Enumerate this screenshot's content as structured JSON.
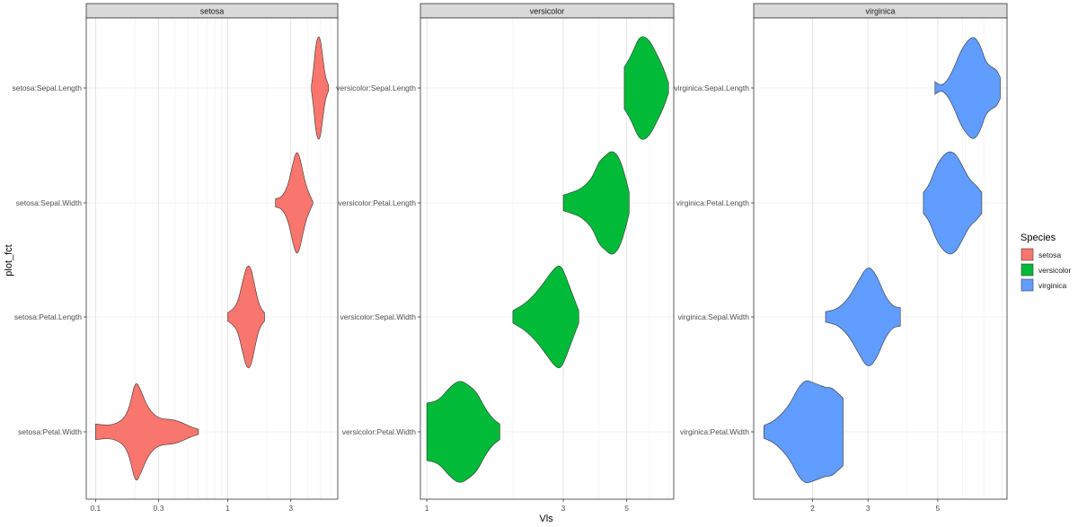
{
  "chart_data": {
    "type": "violin",
    "facet_by": "Species",
    "xlabel": "Vls",
    "ylabel": "plot_fct",
    "xscale": "log10",
    "grid": true,
    "legend": {
      "title": "Species",
      "position": "right",
      "entries": [
        {
          "name": "setosa",
          "color": "#F8766D"
        },
        {
          "name": "versicolor",
          "color": "#00BA38"
        },
        {
          "name": "virginica",
          "color": "#619CFF"
        }
      ]
    },
    "panels": [
      {
        "strip": "setosa",
        "color": "#F8766D",
        "xlim": [
          0.085,
          6.8
        ],
        "xticks": [
          {
            "value": 0.1,
            "label": "0.1"
          },
          {
            "value": 0.3,
            "label": "0.3"
          },
          {
            "value": 1,
            "label": "1"
          },
          {
            "value": 3,
            "label": "3"
          }
        ],
        "violins": [
          {
            "label": "setosa:Sepal.Length",
            "min": 4.3,
            "max": 5.8,
            "profile": [
              [
                4.3,
                0.05
              ],
              [
                4.45,
                0.35
              ],
              [
                4.6,
                0.75
              ],
              [
                4.75,
                0.95
              ],
              [
                4.9,
                1.0
              ],
              [
                5.05,
                0.9
              ],
              [
                5.2,
                0.65
              ],
              [
                5.35,
                0.4
              ],
              [
                5.5,
                0.22
              ],
              [
                5.65,
                0.12
              ],
              [
                5.8,
                0.05
              ]
            ]
          },
          {
            "label": "setosa:Sepal.Width",
            "min": 2.3,
            "max": 4.4,
            "profile": [
              [
                2.3,
                0.08
              ],
              [
                2.5,
                0.1
              ],
              [
                2.7,
                0.2
              ],
              [
                2.9,
                0.4
              ],
              [
                3.1,
                0.75
              ],
              [
                3.3,
                1.0
              ],
              [
                3.5,
                0.9
              ],
              [
                3.7,
                0.6
              ],
              [
                3.9,
                0.35
              ],
              [
                4.1,
                0.2
              ],
              [
                4.3,
                0.08
              ],
              [
                4.4,
                0.03
              ]
            ]
          },
          {
            "label": "setosa:Petal.Length",
            "min": 1.0,
            "max": 1.9,
            "profile": [
              [
                1.0,
                0.08
              ],
              [
                1.1,
                0.15
              ],
              [
                1.2,
                0.3
              ],
              [
                1.3,
                0.7
              ],
              [
                1.4,
                1.0
              ],
              [
                1.5,
                0.95
              ],
              [
                1.6,
                0.6
              ],
              [
                1.7,
                0.3
              ],
              [
                1.8,
                0.15
              ],
              [
                1.9,
                0.08
              ]
            ]
          },
          {
            "label": "setosa:Petal.Width",
            "min": 0.1,
            "max": 0.6,
            "profile": [
              [
                0.1,
                0.15
              ],
              [
                0.13,
                0.12
              ],
              [
                0.16,
                0.22
              ],
              [
                0.18,
                0.45
              ],
              [
                0.2,
                1.0
              ],
              [
                0.22,
                0.8
              ],
              [
                0.25,
                0.45
              ],
              [
                0.3,
                0.25
              ],
              [
                0.38,
                0.24
              ],
              [
                0.45,
                0.18
              ],
              [
                0.52,
                0.1
              ],
              [
                0.6,
                0.05
              ]
            ]
          }
        ]
      },
      {
        "strip": "versicolor",
        "color": "#00BA38",
        "xlim": [
          0.95,
          7.3
        ],
        "xticks": [
          {
            "value": 1,
            "label": "1"
          },
          {
            "value": 3,
            "label": "3"
          },
          {
            "value": 5,
            "label": "5"
          }
        ],
        "violins": [
          {
            "label": "versicolor:Sepal.Length",
            "min": 4.9,
            "max": 7.0,
            "profile": [
              [
                4.9,
                0.4
              ],
              [
                5.1,
                0.55
              ],
              [
                5.3,
                0.75
              ],
              [
                5.5,
                0.95
              ],
              [
                5.7,
                1.0
              ],
              [
                5.9,
                0.95
              ],
              [
                6.1,
                0.85
              ],
              [
                6.3,
                0.7
              ],
              [
                6.5,
                0.55
              ],
              [
                6.7,
                0.4
              ],
              [
                6.9,
                0.2
              ],
              [
                7.0,
                0.1
              ]
            ]
          },
          {
            "label": "versicolor:Petal.Length",
            "min": 3.0,
            "max": 5.1,
            "profile": [
              [
                3.0,
                0.15
              ],
              [
                3.2,
                0.2
              ],
              [
                3.4,
                0.25
              ],
              [
                3.6,
                0.35
              ],
              [
                3.8,
                0.5
              ],
              [
                4.0,
                0.8
              ],
              [
                4.2,
                0.9
              ],
              [
                4.4,
                1.0
              ],
              [
                4.6,
                0.95
              ],
              [
                4.8,
                0.75
              ],
              [
                5.0,
                0.4
              ],
              [
                5.1,
                0.2
              ]
            ]
          },
          {
            "label": "versicolor:Sepal.Width",
            "min": 2.0,
            "max": 3.4,
            "profile": [
              [
                2.0,
                0.12
              ],
              [
                2.2,
                0.25
              ],
              [
                2.4,
                0.45
              ],
              [
                2.6,
                0.7
              ],
              [
                2.8,
                0.95
              ],
              [
                2.95,
                1.0
              ],
              [
                3.1,
                0.7
              ],
              [
                3.3,
                0.3
              ],
              [
                3.4,
                0.12
              ]
            ]
          },
          {
            "label": "versicolor:Petal.Width",
            "min": 1.0,
            "max": 1.8,
            "profile": [
              [
                1.0,
                0.55
              ],
              [
                1.1,
                0.6
              ],
              [
                1.2,
                0.85
              ],
              [
                1.3,
                1.0
              ],
              [
                1.4,
                0.9
              ],
              [
                1.5,
                0.75
              ],
              [
                1.6,
                0.45
              ],
              [
                1.7,
                0.25
              ],
              [
                1.8,
                0.15
              ]
            ]
          }
        ]
      },
      {
        "strip": "virginica",
        "color": "#619CFF",
        "xlim": [
          1.3,
          8.3
        ],
        "xticks": [
          {
            "value": 2,
            "label": "2"
          },
          {
            "value": 3,
            "label": "3"
          },
          {
            "value": 5,
            "label": "5"
          }
        ],
        "violins": [
          {
            "label": "virginica:Sepal.Length",
            "min": 4.9,
            "max": 7.9,
            "profile": [
              [
                4.9,
                0.12
              ],
              [
                5.1,
                0.05
              ],
              [
                5.3,
                0.1
              ],
              [
                5.6,
                0.35
              ],
              [
                5.9,
                0.7
              ],
              [
                6.2,
                0.9
              ],
              [
                6.5,
                1.0
              ],
              [
                6.8,
                0.85
              ],
              [
                7.1,
                0.5
              ],
              [
                7.4,
                0.4
              ],
              [
                7.7,
                0.35
              ],
              [
                7.9,
                0.2
              ]
            ]
          },
          {
            "label": "virginica:Petal.Length",
            "min": 4.5,
            "max": 6.9,
            "profile": [
              [
                4.5,
                0.2
              ],
              [
                4.7,
                0.35
              ],
              [
                4.9,
                0.65
              ],
              [
                5.1,
                0.85
              ],
              [
                5.4,
                1.0
              ],
              [
                5.7,
                0.95
              ],
              [
                6.0,
                0.7
              ],
              [
                6.3,
                0.45
              ],
              [
                6.6,
                0.35
              ],
              [
                6.9,
                0.2
              ]
            ]
          },
          {
            "label": "virginica:Sepal.Width",
            "min": 2.2,
            "max": 3.8,
            "profile": [
              [
                2.2,
                0.1
              ],
              [
                2.4,
                0.15
              ],
              [
                2.6,
                0.35
              ],
              [
                2.8,
                0.7
              ],
              [
                3.0,
                1.0
              ],
              [
                3.2,
                0.8
              ],
              [
                3.4,
                0.4
              ],
              [
                3.6,
                0.2
              ],
              [
                3.8,
                0.18
              ]
            ]
          },
          {
            "label": "virginica:Petal.Width",
            "min": 1.4,
            "max": 2.5,
            "profile": [
              [
                1.4,
                0.12
              ],
              [
                1.5,
                0.2
              ],
              [
                1.6,
                0.35
              ],
              [
                1.7,
                0.55
              ],
              [
                1.8,
                0.85
              ],
              [
                1.9,
                1.0
              ],
              [
                2.0,
                0.95
              ],
              [
                2.1,
                0.9
              ],
              [
                2.2,
                0.85
              ],
              [
                2.3,
                0.85
              ],
              [
                2.4,
                0.75
              ],
              [
                2.5,
                0.65
              ]
            ]
          }
        ]
      }
    ]
  }
}
